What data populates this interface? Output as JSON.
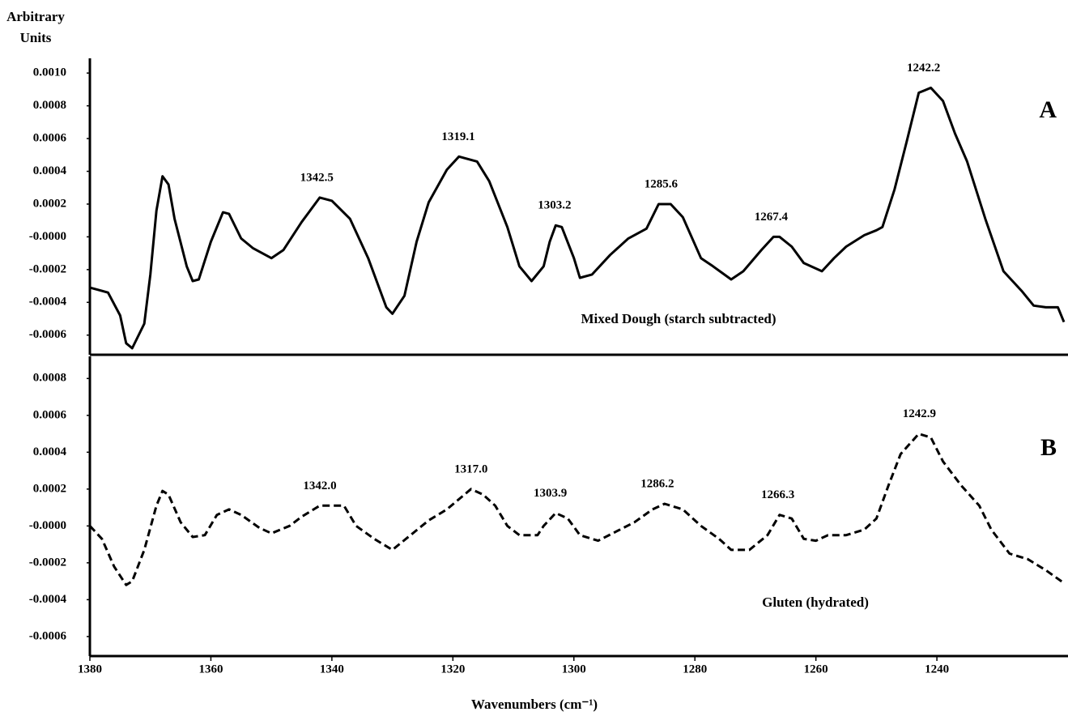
{
  "chart_data": [
    {
      "type": "line",
      "panel_label": "A",
      "ylabel": "Arbitrary Units",
      "x": [
        1380,
        1377,
        1375,
        1374,
        1373,
        1371,
        1370,
        1369,
        1368,
        1367,
        1366,
        1364,
        1363,
        1362,
        1360,
        1358,
        1357,
        1355,
        1353,
        1350,
        1348,
        1345,
        1342,
        1340,
        1337,
        1334,
        1331,
        1330,
        1328,
        1326,
        1324,
        1321,
        1319,
        1316,
        1314,
        1311,
        1309,
        1307,
        1305,
        1304,
        1303,
        1302,
        1300,
        1299,
        1297,
        1294,
        1291,
        1288,
        1286,
        1284,
        1282,
        1279,
        1277,
        1274,
        1272,
        1269,
        1267,
        1266,
        1264,
        1262,
        1259,
        1257,
        1255,
        1252,
        1250,
        1249,
        1247,
        1245,
        1243,
        1241,
        1239,
        1237,
        1235,
        1232,
        1229,
        1226,
        1224,
        1222,
        1220,
        1219
      ],
      "series": [
        {
          "name": "Mixed Dough (starch subtracted)",
          "color": "#000000",
          "dash": false,
          "values": [
            -0.00031,
            -0.00034,
            -0.00048,
            -0.00065,
            -0.00068,
            -0.00053,
            -0.00023,
            0.00016,
            0.00037,
            0.00032,
            0.00011,
            -0.00018,
            -0.00027,
            -0.00026,
            -3e-05,
            0.00015,
            0.00014,
            -1e-05,
            -7e-05,
            -0.00013,
            -8e-05,
            9e-05,
            0.00024,
            0.00022,
            0.00011,
            -0.00013,
            -0.00043,
            -0.00047,
            -0.00036,
            -3e-05,
            0.00021,
            0.00041,
            0.00049,
            0.00046,
            0.00034,
            6e-05,
            -0.00018,
            -0.00027,
            -0.00018,
            -3e-05,
            7e-05,
            6e-05,
            -0.00013,
            -0.00025,
            -0.00023,
            -0.00011,
            -1e-05,
            5e-05,
            0.0002,
            0.0002,
            0.00012,
            -0.00013,
            -0.00018,
            -0.00026,
            -0.00021,
            -8e-05,
            0.0,
            0.0,
            -6e-05,
            -0.00016,
            -0.00021,
            -0.00013,
            -6e-05,
            1e-05,
            4e-05,
            6e-05,
            0.00029,
            0.00058,
            0.00088,
            0.00091,
            0.00083,
            0.00063,
            0.00046,
            0.00011,
            -0.00021,
            -0.00033,
            -0.00042,
            -0.00043,
            -0.00043,
            -0.00052
          ]
        }
      ],
      "xlim": [
        1380,
        1219
      ],
      "ylim": [
        -0.00072,
        0.00109
      ],
      "yticks": [
        {
          "value": 0.001,
          "label": "0.0010"
        },
        {
          "value": 0.0008,
          "label": "0.0008"
        },
        {
          "value": 0.0006,
          "label": "0.0006"
        },
        {
          "value": 0.0004,
          "label": "0.0004"
        },
        {
          "value": 0.0002,
          "label": "0.0002"
        },
        {
          "value": 0,
          "label": "-0.0000"
        },
        {
          "value": -0.0002,
          "label": "-0.0002"
        },
        {
          "value": -0.0004,
          "label": "-0.0004"
        },
        {
          "value": -0.0006,
          "label": "-0.0006"
        }
      ],
      "annotations": [
        {
          "value": 1342.5,
          "label": "1342.5"
        },
        {
          "value": 1319.1,
          "label": "1319.1"
        },
        {
          "value": 1303.2,
          "label": "1303.2"
        },
        {
          "value": 1285.6,
          "label": "1285.6"
        },
        {
          "value": 1267.4,
          "label": "1267.4"
        },
        {
          "value": 1242.2,
          "label": "1242.2"
        }
      ]
    },
    {
      "type": "line",
      "panel_label": "B",
      "xlabel": "Wavenumbers (cm⁻¹)",
      "x": [
        1380,
        1378,
        1376,
        1374,
        1373,
        1371,
        1369,
        1368,
        1367,
        1365,
        1363,
        1361,
        1359,
        1357,
        1355,
        1352,
        1350,
        1347,
        1345,
        1342,
        1340,
        1338,
        1336,
        1333,
        1330,
        1327,
        1324,
        1321,
        1317,
        1315,
        1313,
        1311,
        1309,
        1306,
        1305,
        1303,
        1301,
        1299,
        1296,
        1293,
        1290,
        1287,
        1285,
        1282,
        1279,
        1276,
        1274,
        1271,
        1268,
        1266,
        1264,
        1262,
        1260,
        1258,
        1255,
        1252,
        1250,
        1248,
        1246,
        1243,
        1241,
        1239,
        1236,
        1233,
        1231,
        1228,
        1225,
        1222,
        1219
      ],
      "series": [
        {
          "name": "Gluten (hydrated)",
          "color": "#000000",
          "dash": true,
          "values": [
            0.0,
            -7e-05,
            -0.00022,
            -0.00032,
            -0.0003,
            -0.00013,
            0.00011,
            0.00019,
            0.00017,
            2e-05,
            -6e-05,
            -5e-05,
            6e-05,
            9e-05,
            6e-05,
            -1e-05,
            -4e-05,
            0.0,
            5e-05,
            0.00011,
            0.00011,
            0.00011,
            0.0,
            -7e-05,
            -0.00013,
            -5e-05,
            3e-05,
            9e-05,
            0.0002,
            0.00017,
            0.00011,
            0.0,
            -5e-05,
            -5e-05,
            0.0,
            7e-05,
            4e-05,
            -5e-05,
            -8e-05,
            -3e-05,
            2e-05,
            9e-05,
            0.00012,
            9e-05,
            0.0,
            -7e-05,
            -0.00013,
            -0.00013,
            -5e-05,
            6e-05,
            4e-05,
            -7e-05,
            -8e-05,
            -5e-05,
            -5e-05,
            -2e-05,
            4e-05,
            0.00022,
            0.00039,
            0.0005,
            0.00048,
            0.00035,
            0.00022,
            0.00011,
            -2e-05,
            -0.00015,
            -0.00018,
            -0.00024,
            -0.00031
          ]
        }
      ],
      "xlim": [
        1380,
        1219
      ],
      "ylim": [
        -0.000706,
        0.00092
      ],
      "xticks": [
        1380,
        1360,
        1340,
        1320,
        1300,
        1280,
        1260,
        1240
      ],
      "yticks": [
        {
          "value": 0.0008,
          "label": "0.0008"
        },
        {
          "value": 0.0006,
          "label": "0.0006"
        },
        {
          "value": 0.0004,
          "label": "0.0004"
        },
        {
          "value": 0.0002,
          "label": "0.0002"
        },
        {
          "value": 0,
          "label": "-0.0000"
        },
        {
          "value": -0.0002,
          "label": "-0.0002"
        },
        {
          "value": -0.0004,
          "label": "-0.0004"
        },
        {
          "value": -0.0006,
          "label": "-0.0006"
        }
      ],
      "annotations": [
        {
          "value": 1342.0,
          "label": "1342.0"
        },
        {
          "value": 1317.0,
          "label": "1317.0"
        },
        {
          "value": 1303.9,
          "label": "1303.9"
        },
        {
          "value": 1286.2,
          "label": "1286.2"
        },
        {
          "value": 1266.3,
          "label": "1266.3"
        },
        {
          "value": 1242.9,
          "label": "1242.9"
        }
      ]
    }
  ]
}
